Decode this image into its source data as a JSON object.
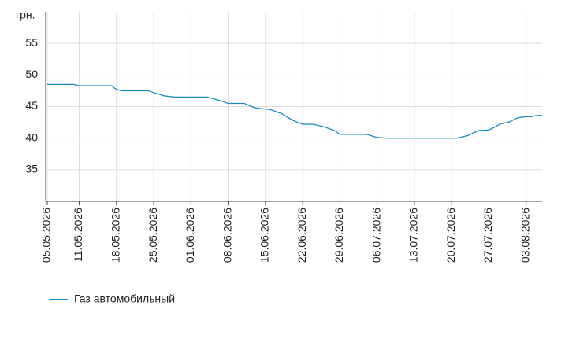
{
  "chart_data": {
    "type": "line",
    "y_label": "грн.",
    "x": [
      "05.05.2026",
      "10.05.2026",
      "11.05.2026",
      "17.05.2026",
      "18.05.2026",
      "19.05.2026",
      "24.05.2026",
      "25.05.2026",
      "27.05.2026",
      "29.05.2026",
      "04.06.2026",
      "05.06.2026",
      "07.06.2026",
      "08.06.2026",
      "11.06.2026",
      "13.06.2026",
      "16.06.2026",
      "18.06.2026",
      "20.06.2026",
      "21.06.2026",
      "22.06.2026",
      "24.06.2026",
      "26.06.2026",
      "28.06.2026",
      "29.06.2026",
      "04.07.2026",
      "06.07.2026",
      "08.07.2026",
      "20.07.2026",
      "21.07.2026",
      "23.07.2026",
      "24.07.2026",
      "25.07.2026",
      "27.07.2026",
      "28.07.2026",
      "29.07.2026",
      "31.07.2026",
      "01.08.2026",
      "02.08.2026",
      "03.08.2026",
      "04.08.2026",
      "05.08.2026",
      "06.08.2026"
    ],
    "series": [
      {
        "name": "Газ автомобильный",
        "color": "#1a8bc4",
        "values": [
          48.5,
          48.5,
          48.3,
          48.3,
          47.7,
          47.5,
          47.5,
          47.2,
          46.7,
          46.5,
          46.5,
          46.3,
          45.8,
          45.5,
          45.5,
          44.8,
          44.5,
          43.9,
          42.9,
          42.5,
          42.2,
          42.2,
          41.8,
          41.2,
          40.6,
          40.6,
          40.1,
          40,
          40,
          40,
          40.4,
          40.8,
          41.2,
          41.3,
          41.7,
          42.2,
          42.6,
          43.1,
          43.3,
          43.4,
          43.4,
          43.6,
          43.6
        ]
      }
    ],
    "xlim": [
      "05.05.2026",
      "06.08.2026"
    ],
    "xticks": [
      "05.05.2026",
      "11.05.2026",
      "18.05.2026",
      "25.05.2026",
      "01.06.2026",
      "08.06.2026",
      "15.06.2026",
      "22.06.2026",
      "29.06.2026",
      "06.07.2026",
      "13.07.2026",
      "20.07.2026",
      "27.07.2026",
      "03.08.2026"
    ],
    "ylim": [
      30,
      60
    ],
    "yticks": [
      35,
      40,
      45,
      50,
      55
    ],
    "grid": true,
    "legend": "bottom-left"
  }
}
